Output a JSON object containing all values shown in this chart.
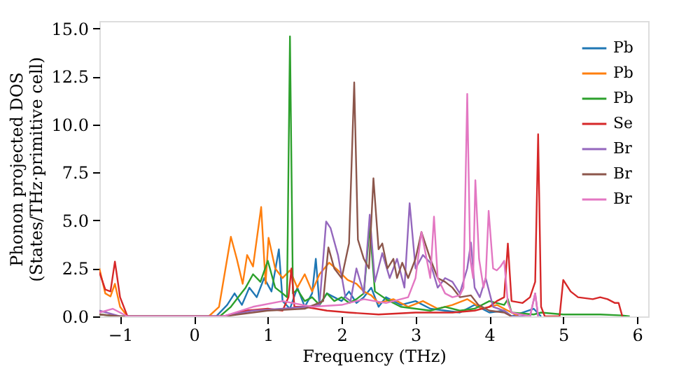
{
  "chart_data": {
    "type": "line",
    "xlabel": "Frequency (THz)",
    "ylabel": "Phonon projected DOS\n(States/THz·primitive cell)",
    "xlim": [
      -1.28,
      6.15
    ],
    "ylim": [
      0,
      15.4
    ],
    "xticks": [
      {
        "value": -1,
        "label": "−1"
      },
      0,
      1,
      2,
      3,
      4,
      5,
      6
    ],
    "yticks": [
      {
        "value": 0,
        "label": "0.0"
      },
      2.5,
      {
        "value": 5,
        "label": "5.0"
      },
      7.5,
      {
        "value": 10,
        "label": "10.0"
      },
      12.5,
      {
        "value": 15,
        "label": "15.0"
      }
    ],
    "grid": false,
    "legend": "top right",
    "marker": "none",
    "line_style": "solid",
    "series": [
      {
        "name": "Pb",
        "color": "#1f77b4",
        "x": [
          -0.9,
          0.3,
          0.45,
          0.55,
          0.65,
          0.75,
          0.85,
          0.95,
          1.05,
          1.15,
          1.2,
          1.3,
          1.4,
          1.5,
          1.6,
          1.65,
          1.7,
          1.8,
          1.9,
          2.0,
          2.1,
          2.2,
          2.3,
          2.4,
          2.5,
          2.6,
          2.8,
          3.0,
          3.2,
          3.4,
          3.6,
          3.8,
          4.0,
          4.2,
          4.3,
          4.6,
          4.7
        ],
        "values": [
          0,
          0,
          0.6,
          1.2,
          0.6,
          1.5,
          1.0,
          2.0,
          1.3,
          3.5,
          0.8,
          0.4,
          1.5,
          0.5,
          1.2,
          3.0,
          0.6,
          1.2,
          1.0,
          0.8,
          1.3,
          0.7,
          1.0,
          1.5,
          0.5,
          1.0,
          0.6,
          0.8,
          0.4,
          0.3,
          0.2,
          0.6,
          0.2,
          0.3,
          0,
          0.4,
          0
        ]
      },
      {
        "name": "Pb",
        "color": "#ff7f0e",
        "x": [
          -1.28,
          -1.2,
          -1.13,
          -1.07,
          -1.0,
          -0.9,
          0.2,
          0.34,
          0.5,
          0.58,
          0.66,
          0.72,
          0.8,
          0.91,
          0.97,
          1.01,
          1.1,
          1.2,
          1.3,
          1.4,
          1.5,
          1.6,
          1.7,
          1.83,
          1.95,
          2.08,
          2.2,
          2.3,
          2.4,
          2.5,
          2.7,
          2.9,
          3.1,
          3.3,
          3.5,
          3.7,
          3.9,
          4.1,
          4.3,
          4.4
        ],
        "values": [
          2.5,
          1.2,
          1.04,
          1.7,
          0.5,
          0,
          0,
          0.5,
          4.15,
          3.0,
          1.7,
          3.2,
          2.6,
          5.7,
          1.7,
          4.1,
          2.5,
          2.0,
          2.4,
          1.5,
          2.2,
          1.3,
          2.2,
          2.8,
          2.4,
          1.9,
          1.7,
          1.3,
          1.1,
          0.7,
          0.9,
          0.5,
          0.8,
          0.4,
          0.6,
          0.9,
          0.4,
          0.6,
          0.2,
          0
        ]
      },
      {
        "name": "Pb",
        "color": "#2ca02c",
        "x": [
          -1.28,
          -1.0,
          0.35,
          0.5,
          0.6,
          0.7,
          0.8,
          0.9,
          1.0,
          1.1,
          1.2,
          1.26,
          1.3,
          1.34,
          1.4,
          1.5,
          1.6,
          1.7,
          1.8,
          1.9,
          2.0,
          2.1,
          2.2,
          2.3,
          2.38,
          2.45,
          2.6,
          2.8,
          3.0,
          3.2,
          3.4,
          3.6,
          3.8,
          4.0,
          4.2,
          4.25,
          4.3,
          4.6,
          4.7,
          5.0,
          5.5,
          5.8,
          5.9
        ],
        "values": [
          0.1,
          0,
          0,
          0.5,
          1.0,
          1.5,
          2.2,
          1.8,
          2.9,
          1.5,
          1.2,
          1.0,
          14.6,
          1.2,
          1.4,
          0.8,
          1.0,
          0.6,
          1.2,
          0.8,
          1.0,
          0.7,
          0.9,
          1.2,
          4.7,
          1.3,
          0.9,
          0.5,
          0.4,
          0.3,
          0.5,
          0.3,
          0.4,
          0.8,
          0.6,
          0.9,
          0.2,
          0.1,
          0.2,
          0.1,
          0.1,
          0.05,
          0
        ]
      },
      {
        "name": "Se",
        "color": "#d62728",
        "x": [
          -1.28,
          -1.2,
          -1.13,
          -1.07,
          -1.0,
          -0.9,
          0.4,
          0.7,
          1.0,
          1.2,
          1.28,
          1.32,
          1.36,
          1.5,
          1.8,
          2.1,
          2.5,
          3.0,
          3.5,
          3.8,
          4.0,
          4.1,
          4.2,
          4.25,
          4.3,
          4.45,
          4.55,
          4.62,
          4.66,
          4.7,
          4.75,
          4.95,
          5.0,
          5.1,
          5.2,
          5.4,
          5.5,
          5.6,
          5.7,
          5.75,
          5.8
        ],
        "values": [
          2.3,
          1.4,
          1.3,
          2.86,
          1.0,
          0,
          0,
          0.3,
          0.4,
          0.3,
          1.0,
          2.5,
          0.5,
          0.5,
          0.3,
          0.2,
          0.1,
          0.2,
          0.2,
          0.3,
          0.5,
          0.8,
          1.0,
          3.8,
          0.8,
          0.7,
          1.0,
          1.8,
          9.5,
          0.5,
          0,
          0,
          1.9,
          1.3,
          1.0,
          0.9,
          1.0,
          0.9,
          0.7,
          0.7,
          0
        ]
      },
      {
        "name": "Br",
        "color": "#9467bd",
        "x": [
          -1.28,
          -1.0,
          0.4,
          0.8,
          1.2,
          1.5,
          1.7,
          1.79,
          1.85,
          1.95,
          2.05,
          2.12,
          2.2,
          2.3,
          2.38,
          2.45,
          2.55,
          2.65,
          2.75,
          2.85,
          2.92,
          3.0,
          3.1,
          3.2,
          3.3,
          3.4,
          3.5,
          3.6,
          3.7,
          3.75,
          3.8,
          3.87,
          3.95,
          4.05,
          4.2,
          4.3,
          4.55,
          4.62,
          4.66
        ],
        "values": [
          0.3,
          0,
          0,
          0.3,
          0.4,
          0.5,
          0.6,
          4.95,
          4.6,
          3.2,
          1.0,
          0.8,
          2.5,
          1.2,
          5.3,
          1.8,
          3.3,
          2.0,
          3.0,
          1.5,
          5.9,
          2.5,
          3.2,
          2.8,
          1.5,
          2.0,
          1.8,
          1.2,
          2.5,
          3.85,
          1.5,
          1.0,
          2.0,
          0.5,
          0.3,
          0,
          0,
          1.2,
          0
        ]
      },
      {
        "name": "Br",
        "color": "#8c564b",
        "x": [
          -1.28,
          -1.0,
          0.4,
          1.0,
          1.5,
          1.75,
          1.82,
          1.9,
          2.0,
          2.1,
          2.17,
          2.22,
          2.3,
          2.37,
          2.43,
          2.5,
          2.55,
          2.62,
          2.7,
          2.75,
          2.82,
          2.9,
          3.0,
          3.08,
          3.2,
          3.3,
          3.4,
          3.5,
          3.6,
          3.75,
          3.85,
          3.9,
          4.0,
          4.2,
          4.3
        ],
        "values": [
          0.1,
          0,
          0,
          0.3,
          0.4,
          0.8,
          3.6,
          2.5,
          2.0,
          3.8,
          12.2,
          4.0,
          3.0,
          2.5,
          7.2,
          3.5,
          3.8,
          2.5,
          3.0,
          2.0,
          2.8,
          2.0,
          3.0,
          4.4,
          3.0,
          2.0,
          1.8,
          1.5,
          1.0,
          1.1,
          0.6,
          0.5,
          0.3,
          0.2,
          0
        ]
      },
      {
        "name": "Br",
        "color": "#e377c2",
        "x": [
          -1.28,
          -1.1,
          -0.9,
          0.4,
          0.8,
          1.2,
          1.6,
          2.0,
          2.3,
          2.6,
          2.9,
          3.0,
          3.08,
          3.15,
          3.2,
          3.25,
          3.3,
          3.4,
          3.5,
          3.6,
          3.65,
          3.7,
          3.74,
          3.78,
          3.81,
          3.86,
          3.92,
          3.95,
          3.99,
          4.05,
          4.1,
          4.15,
          4.2,
          4.25,
          4.3,
          4.55,
          4.62,
          4.66
        ],
        "values": [
          0.2,
          0.4,
          0,
          0,
          0.5,
          0.8,
          0.5,
          0.6,
          0.9,
          0.7,
          1.0,
          2.0,
          4.4,
          3.0,
          2.0,
          5.2,
          2.0,
          1.2,
          1.0,
          1.1,
          1.5,
          11.6,
          3.0,
          2.0,
          7.1,
          3.0,
          1.5,
          2.0,
          5.5,
          2.5,
          2.4,
          2.6,
          2.9,
          0.7,
          0.2,
          0,
          1.2,
          0
        ]
      }
    ]
  }
}
